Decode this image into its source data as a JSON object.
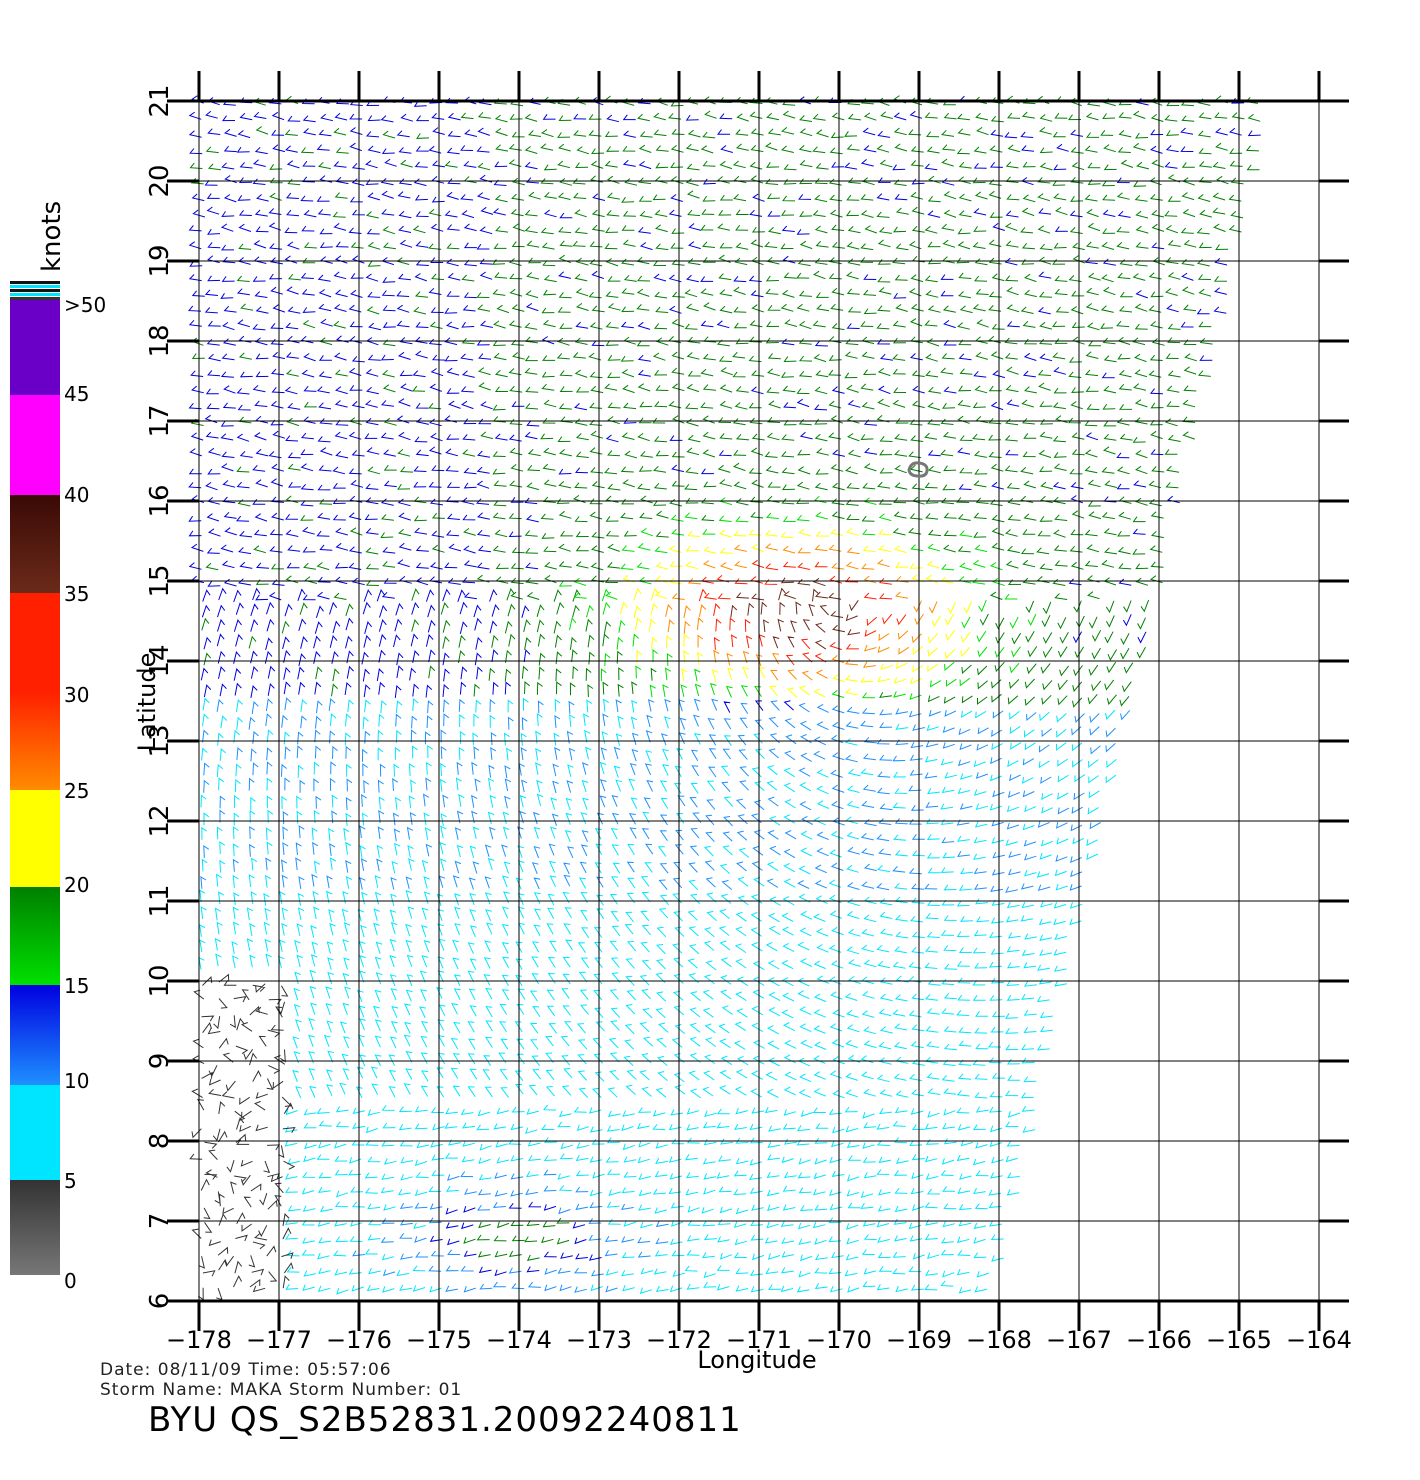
{
  "map": {
    "lon_ticks": [
      "-178",
      "-177",
      "-176",
      "-175",
      "-174",
      "-173",
      "-172",
      "-171",
      "-170",
      "-169",
      "-168",
      "-167",
      "-166",
      "-165",
      "-164"
    ],
    "lat_ticks": [
      "6",
      "7",
      "8",
      "9",
      "10",
      "11",
      "12",
      "13",
      "14",
      "15",
      "16",
      "17",
      "18",
      "19",
      "20",
      "21"
    ],
    "lon_range": [
      -178,
      -164
    ],
    "lat_range": [
      6,
      21
    ],
    "xlabel": "Longitude",
    "ylabel": "Latitude",
    "storm_center": {
      "lon": -168.5,
      "lat": 16.7
    }
  },
  "colorbar": {
    "unit": "knots",
    "labels": [
      ">50",
      "45",
      "40",
      "35",
      "30",
      "25",
      "20",
      "15",
      "10",
      "5",
      "0"
    ],
    "colors": {
      "gray": "#777777",
      "dark": "#333333",
      "cyan": "#00e5ff",
      "light_blue": "#1e90ff",
      "blue": "#0000e0",
      "dark_green": "#008000",
      "green": "#00e000",
      "yellow": "#ffff00",
      "orange": "#ff8c00",
      "red": "#ff2000",
      "brown": "#6b2a1a",
      "magenta": "#ff00ff",
      "purple": "#6a00c8"
    }
  },
  "footer": {
    "date_line": "Date: 08/11/09   Time: 05:57:06",
    "storm_line": "Storm  Name:  MAKA   Storm  Number:  01",
    "id_line": "BYU  QS_S2B52831.20092240811"
  }
}
